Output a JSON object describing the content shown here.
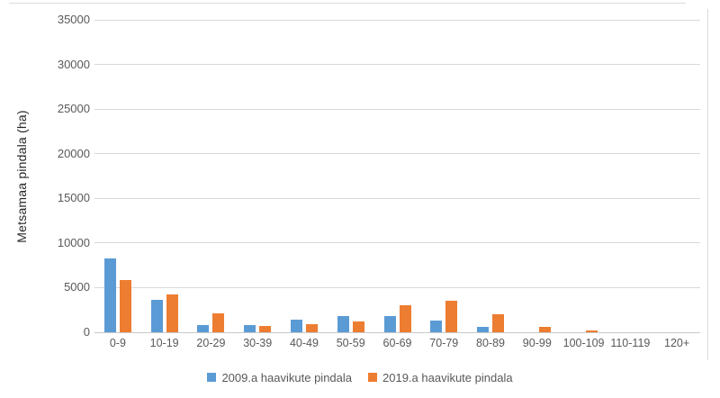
{
  "chart_data": {
    "type": "bar",
    "title": "",
    "categories": [
      "0-9",
      "10-19",
      "20-29",
      "30-39",
      "40-49",
      "50-59",
      "60-69",
      "70-79",
      "80-89",
      "90-99",
      "100-109",
      "110-119",
      "120+"
    ],
    "series": [
      {
        "name": "2009.a haavikute pindala",
        "color": "#5B9BD5",
        "values": [
          8300,
          3600,
          800,
          800,
          1400,
          1800,
          1800,
          1300,
          600,
          0,
          0,
          0,
          0
        ]
      },
      {
        "name": "2019.a haavikute pindala",
        "color": "#ED7D31",
        "values": [
          5900,
          4200,
          2100,
          750,
          900,
          1250,
          3000,
          3500,
          2000,
          650,
          200,
          0,
          0
        ]
      }
    ],
    "xlabel": "",
    "ylabel": "Metsamaa pindala (ha)",
    "ylim": [
      0,
      35000
    ],
    "yticks": [
      0,
      5000,
      10000,
      15000,
      20000,
      25000,
      30000,
      35000
    ],
    "grid": true,
    "legend_position": "bottom",
    "colors": {
      "series_2009": "#5B9BD5",
      "series_2019": "#ED7D31",
      "gridline": "#D9D9D9",
      "axis_line": "#C9C9C9",
      "tick_label": "#595959",
      "axis_title": "#262626",
      "frame_line": "#DCDCDC"
    }
  }
}
